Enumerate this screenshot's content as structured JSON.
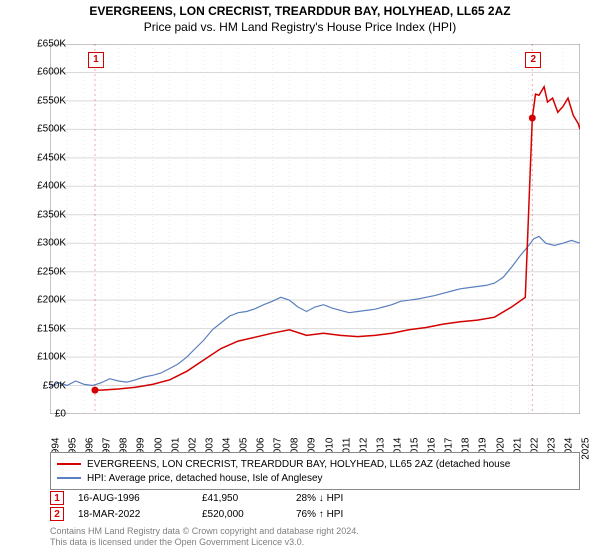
{
  "title_line1": "EVERGREENS, LON CRECRIST, TREARDDUR BAY, HOLYHEAD, LL65 2AZ",
  "title_line2": "Price paid vs. HM Land Registry's House Price Index (HPI)",
  "chart": {
    "type": "line",
    "background_color": "#ffffff",
    "plot_border_color": "#8a8a8a",
    "grid_color": "#d9d9d9",
    "dotted_ref_color": "#cccccc",
    "y_axis": {
      "min": 0,
      "max": 650000,
      "tick_step": 50000,
      "prefix": "£",
      "suffix": "K",
      "divide": 1000,
      "label_fontsize": 10
    },
    "x_axis": {
      "min": 1994,
      "max": 2025,
      "tick_step": 1,
      "rotate_deg": -90,
      "label_fontsize": 10
    },
    "series_property": {
      "name": "EVERGREENS, LON CRECRIST, TREARDDUR BAY, HOLYHEAD, LL65 2AZ (detached house",
      "color": "#d40000",
      "line_width": 1.5,
      "data": [
        [
          1996.63,
          41950
        ],
        [
          1997,
          42000
        ],
        [
          1998,
          44000
        ],
        [
          1999,
          47000
        ],
        [
          2000,
          52000
        ],
        [
          2001,
          60000
        ],
        [
          2002,
          75000
        ],
        [
          2003,
          95000
        ],
        [
          2004,
          115000
        ],
        [
          2005,
          128000
        ],
        [
          2006,
          135000
        ],
        [
          2007,
          142000
        ],
        [
          2008,
          148000
        ],
        [
          2009,
          138000
        ],
        [
          2010,
          142000
        ],
        [
          2011,
          138000
        ],
        [
          2012,
          136000
        ],
        [
          2013,
          138000
        ],
        [
          2014,
          142000
        ],
        [
          2015,
          148000
        ],
        [
          2016,
          152000
        ],
        [
          2017,
          158000
        ],
        [
          2018,
          162000
        ],
        [
          2019,
          165000
        ],
        [
          2020,
          170000
        ],
        [
          2021,
          188000
        ],
        [
          2021.8,
          205000
        ],
        [
          2022.21,
          520000
        ],
        [
          2022.4,
          562000
        ],
        [
          2022.6,
          560000
        ],
        [
          2022.9,
          575000
        ],
        [
          2023.1,
          548000
        ],
        [
          2023.4,
          555000
        ],
        [
          2023.7,
          530000
        ],
        [
          2024.0,
          540000
        ],
        [
          2024.3,
          555000
        ],
        [
          2024.6,
          525000
        ],
        [
          2024.9,
          510000
        ],
        [
          2025.0,
          500000
        ]
      ]
    },
    "series_hpi": {
      "name": "HPI: Average price, detached house, Isle of Anglesey",
      "color": "#5b7fbf",
      "line_width": 1.2,
      "data": [
        [
          1994,
          48000
        ],
        [
          1994.5,
          55000
        ],
        [
          1995,
          50000
        ],
        [
          1995.5,
          58000
        ],
        [
          1996,
          52000
        ],
        [
          1996.5,
          50000
        ],
        [
          1997,
          55000
        ],
        [
          1997.5,
          62000
        ],
        [
          1998,
          58000
        ],
        [
          1998.5,
          56000
        ],
        [
          1999,
          60000
        ],
        [
          1999.5,
          65000
        ],
        [
          2000,
          68000
        ],
        [
          2000.5,
          72000
        ],
        [
          2001,
          80000
        ],
        [
          2001.5,
          88000
        ],
        [
          2002,
          100000
        ],
        [
          2002.5,
          115000
        ],
        [
          2003,
          130000
        ],
        [
          2003.5,
          148000
        ],
        [
          2004,
          160000
        ],
        [
          2004.5,
          172000
        ],
        [
          2005,
          178000
        ],
        [
          2005.5,
          180000
        ],
        [
          2006,
          185000
        ],
        [
          2006.5,
          192000
        ],
        [
          2007,
          198000
        ],
        [
          2007.5,
          205000
        ],
        [
          2008,
          200000
        ],
        [
          2008.5,
          188000
        ],
        [
          2009,
          180000
        ],
        [
          2009.5,
          188000
        ],
        [
          2010,
          192000
        ],
        [
          2010.5,
          186000
        ],
        [
          2011,
          182000
        ],
        [
          2011.5,
          178000
        ],
        [
          2012,
          180000
        ],
        [
          2012.5,
          182000
        ],
        [
          2013,
          184000
        ],
        [
          2013.5,
          188000
        ],
        [
          2014,
          192000
        ],
        [
          2014.5,
          198000
        ],
        [
          2015,
          200000
        ],
        [
          2015.5,
          202000
        ],
        [
          2016,
          205000
        ],
        [
          2016.5,
          208000
        ],
        [
          2017,
          212000
        ],
        [
          2017.5,
          216000
        ],
        [
          2018,
          220000
        ],
        [
          2018.5,
          222000
        ],
        [
          2019,
          224000
        ],
        [
          2019.5,
          226000
        ],
        [
          2020,
          230000
        ],
        [
          2020.5,
          240000
        ],
        [
          2021,
          258000
        ],
        [
          2021.5,
          278000
        ],
        [
          2022,
          296000
        ],
        [
          2022.3,
          308000
        ],
        [
          2022.6,
          312000
        ],
        [
          2023,
          300000
        ],
        [
          2023.5,
          296000
        ],
        [
          2024,
          300000
        ],
        [
          2024.5,
          305000
        ],
        [
          2025,
          300000
        ]
      ]
    },
    "sale_markers": [
      {
        "id": "1",
        "year": 1996.63,
        "price": 41950,
        "color": "#d40000"
      },
      {
        "id": "2",
        "year": 2022.21,
        "price": 520000,
        "color": "#d40000"
      }
    ]
  },
  "legend": {
    "border_color": "#888888",
    "items": [
      {
        "color": "#d40000",
        "label": "EVERGREENS, LON CRECRIST, TREARDDUR BAY, HOLYHEAD, LL65 2AZ (detached house"
      },
      {
        "color": "#5b7fbf",
        "label": "HPI: Average price, detached house, Isle of Anglesey"
      }
    ]
  },
  "summary_rows": [
    {
      "marker": "1",
      "marker_color": "#d40000",
      "date": "16-AUG-1996",
      "price": "£41,950",
      "hpi": "28% ↓ HPI"
    },
    {
      "marker": "2",
      "marker_color": "#d40000",
      "date": "18-MAR-2022",
      "price": "£520,000",
      "hpi": "76% ↑ HPI"
    }
  ],
  "footnote_line1": "Contains HM Land Registry data © Crown copyright and database right 2024.",
  "footnote_line2": "This data is licensed under the Open Government Licence v3.0."
}
